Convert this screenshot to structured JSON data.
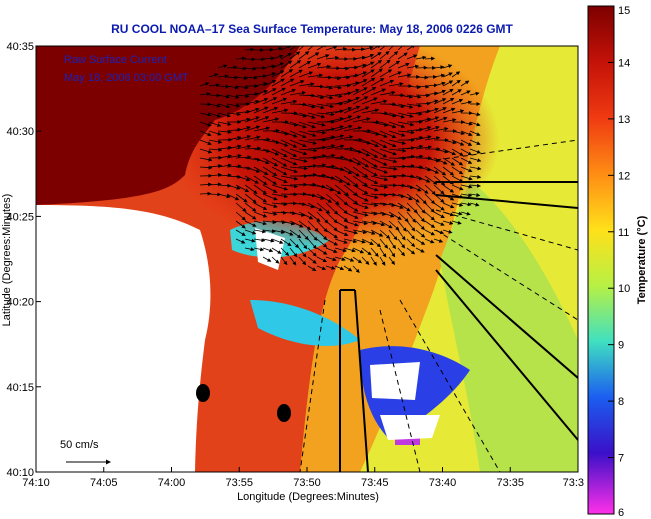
{
  "chart_data": {
    "type": "heatmap",
    "title": "RU COOL  NOAA–17  Sea Surface Temperature:  May 18, 2006 0226 GMT",
    "xlabel": "Longitude (Degrees:Minutes)",
    "ylabel": "Latitude (Degrees:Minutes)",
    "colorbar_label": "Temperature (°C)",
    "x_ticks": [
      "74:10",
      "74:05",
      "74:00",
      "73:55",
      "73:50",
      "73:45",
      "73:40",
      "73:35",
      "73:3"
    ],
    "y_ticks": [
      "40:35",
      "40:30",
      "40:25",
      "40:20",
      "40:15",
      "40:10"
    ],
    "xlim_minutes_west": [
      4450,
      4410
    ],
    "ylim_minutes_north": [
      2410,
      2435
    ],
    "colorbar_ticks": [
      15,
      14,
      13,
      12,
      11,
      10,
      9,
      8,
      7,
      6
    ],
    "colorbar_range": [
      6,
      15
    ],
    "annotations": {
      "legend_line1": "Raw Surface Current",
      "legend_line2": "May 18, 2006 03:00 GMT",
      "scale_label": "50 cm/s"
    },
    "current_vector_region": {
      "center_lon": "73:54",
      "center_lat": "40:28"
    },
    "markers": [
      {
        "lon": "73:59",
        "lat": "40:14.5",
        "color": "#000000"
      },
      {
        "lon": "73:53",
        "lat": "40:13.5",
        "color": "#000000"
      }
    ],
    "colors": {
      "land": "#7d0000",
      "warm": "#e8401a",
      "mid": "#ffd21e",
      "cool": "#3ed8e0",
      "cold": "#1a2be0",
      "title": "#0b1bb0"
    }
  }
}
